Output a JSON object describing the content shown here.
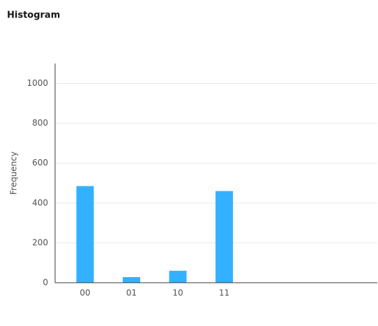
{
  "chart_data": {
    "type": "bar",
    "title": "Histogram",
    "y_label": "Frequency",
    "categories": [
      "00",
      "01",
      "10",
      "11"
    ],
    "values": [
      485,
      28,
      60,
      460
    ],
    "color": "#33b1ff",
    "ylim": [
      0,
      1100
    ],
    "yticks": [
      0,
      200,
      400,
      600,
      800,
      1000
    ],
    "grid": true
  }
}
